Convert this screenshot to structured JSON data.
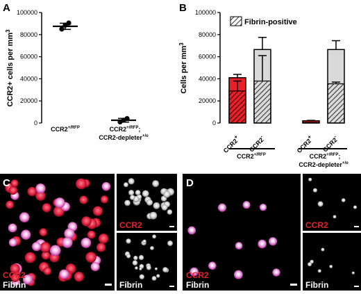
{
  "panels": {
    "A": "A",
    "B": "B",
    "C": "C",
    "D": "D"
  },
  "chart_data": [
    {
      "type": "scatter",
      "panel": "A",
      "ylabel": "CCR2+ cells per mm",
      "ylabel_sup": "3",
      "ylim": [
        0,
        100000
      ],
      "yticks": [
        "0",
        "20000",
        "40000",
        "60000",
        "80000",
        "100000"
      ],
      "categories": [
        {
          "line1": "CCR2",
          "sup1": "+/RFP",
          "line2": ""
        },
        {
          "line1": "CCR2",
          "sup1": "+/RFP",
          "line2": "CCR2-depleter",
          "sup2": "+/o",
          "sep": ";"
        }
      ],
      "groups": [
        {
          "mean": 87500,
          "sd": 2800,
          "points": [
            85000,
            88500,
            90500
          ]
        },
        {
          "mean": 2500,
          "sd": 1700,
          "points": [
            1000,
            2500,
            4000
          ]
        }
      ]
    },
    {
      "type": "bar",
      "panel": "B",
      "ylabel": "Cells per mm",
      "ylabel_sup": "3",
      "ylim": [
        0,
        100000
      ],
      "yticks": [
        "0",
        "20000",
        "40000",
        "60000",
        "80000",
        "100000"
      ],
      "legend": {
        "label": "Fibrin-positive",
        "position": "top-right"
      },
      "bars": [
        {
          "cat": "CCR2",
          "sup": "+",
          "total": 41000,
          "err": 3000,
          "fibrin": 29000,
          "fibrin_err": 9000,
          "fill": "#e8202a"
        },
        {
          "cat": "CCR2",
          "sup": "-",
          "total": 66500,
          "err": 11000,
          "fibrin": 38000,
          "fibrin_err": 23000,
          "fill": "#d9d9d9"
        },
        {
          "cat": "CCR2",
          "sup": "+",
          "total": 2000,
          "err": 400,
          "fibrin": 500,
          "fibrin_err": 0,
          "fill": "#e8202a"
        },
        {
          "cat": "CCR2",
          "sup": "-",
          "total": 66500,
          "err": 8000,
          "fibrin": 35500,
          "fibrin_err": 1500,
          "fill": "#d9d9d9"
        }
      ],
      "group_labels": [
        {
          "line1": "CCR2",
          "sup1": "+/RFP",
          "line2": ""
        },
        {
          "line1": "CCR2",
          "sup1": "+/RFP",
          "line2": "CCR2-depleter",
          "sup2": "+/o",
          "sep": ";"
        }
      ]
    }
  ],
  "micrographs": {
    "C": {
      "main_top": "CCR2",
      "main_bottom": "Fibrin",
      "inset_top": "CCR2",
      "inset_bottom": "Fibrin"
    },
    "D": {
      "main_top": "CCR2",
      "main_bottom": "Fibrin",
      "inset_top": "CCR2",
      "inset_bottom": "Fibrin"
    }
  },
  "colors": {
    "ccr2_red": "#e8202a",
    "light_gray": "#d9d9d9",
    "black": "#000000"
  }
}
